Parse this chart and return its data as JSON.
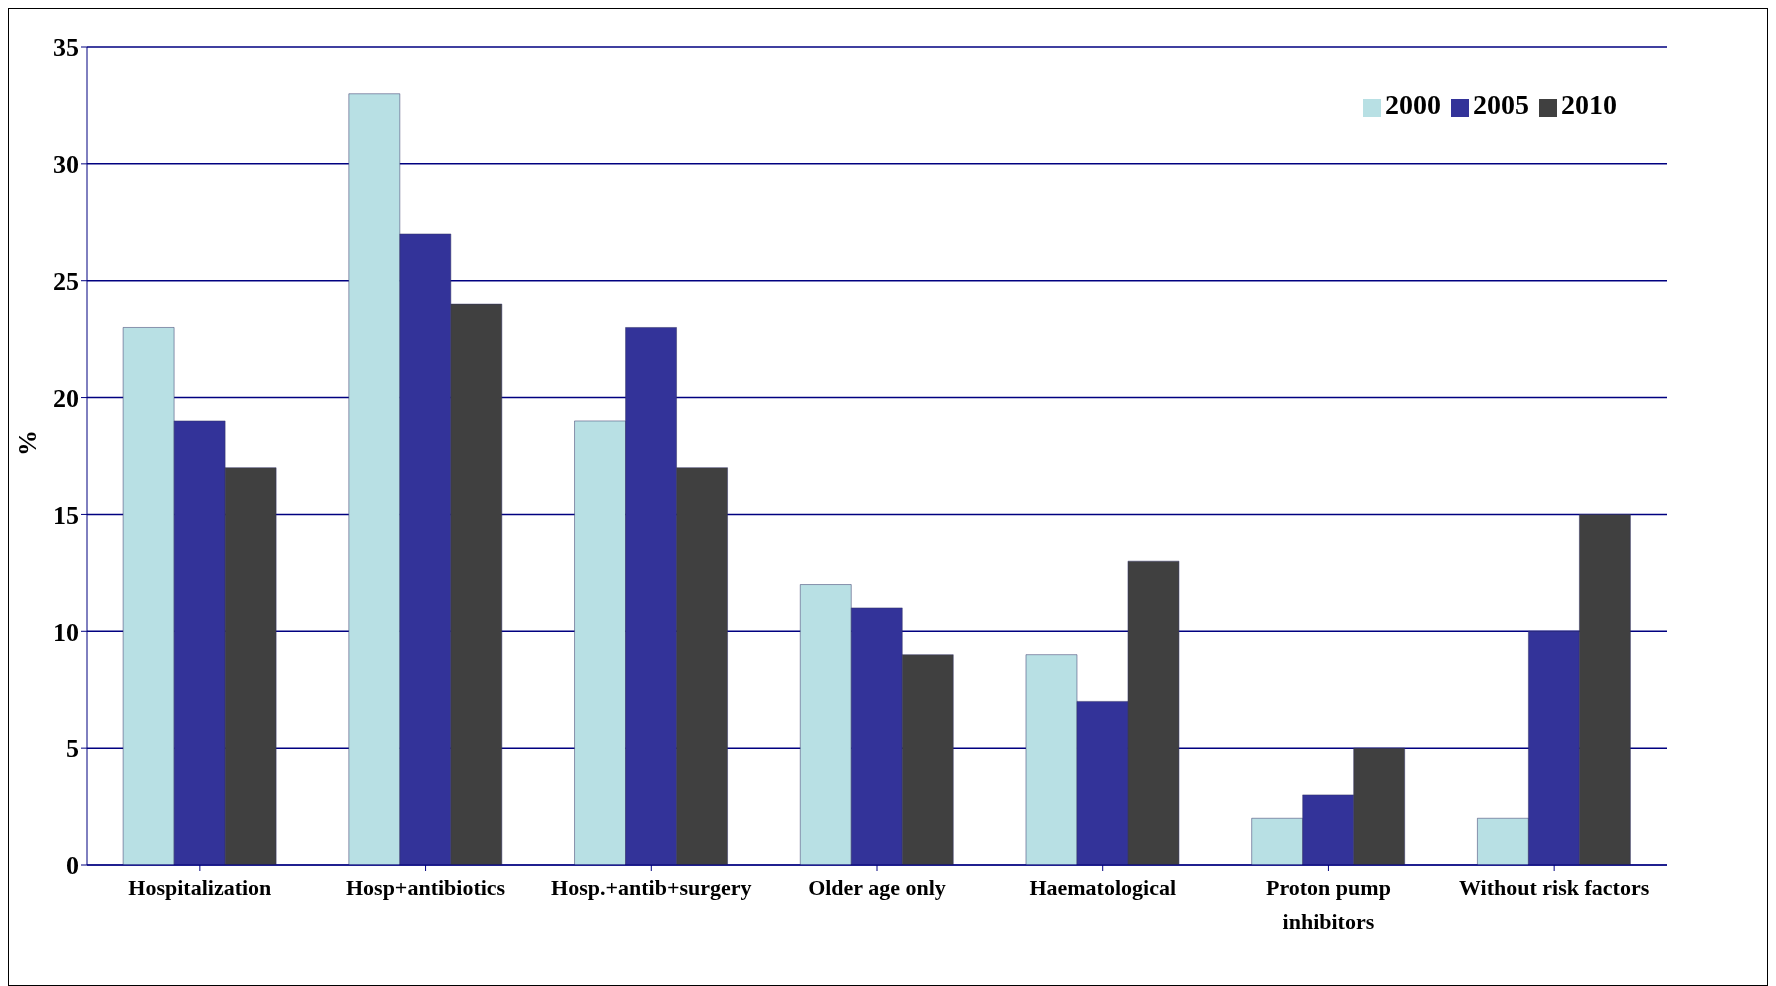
{
  "chart_data": {
    "type": "bar",
    "ylabel": "%",
    "categories": [
      "Hospitalization",
      "Hosp+antibiotics",
      "Hosp.+antib+surgery",
      "Older age only",
      "Haematological",
      "Proton pump inhibitors",
      "Without risk factors"
    ],
    "series": [
      {
        "name": "2000",
        "color": "#b8e0e4",
        "values": [
          23,
          33,
          19,
          12,
          9,
          2,
          2
        ]
      },
      {
        "name": "2005",
        "color": "#333399",
        "values": [
          19,
          27,
          23,
          11,
          7,
          3,
          10
        ]
      },
      {
        "name": "2010",
        "color": "#404040",
        "values": [
          17,
          24,
          17,
          9,
          13,
          5,
          15
        ]
      }
    ],
    "ylim": [
      0,
      35
    ],
    "yticks": [
      0,
      5,
      10,
      15,
      20,
      25,
      30,
      35
    ],
    "grid": "y",
    "legend": "top right"
  }
}
